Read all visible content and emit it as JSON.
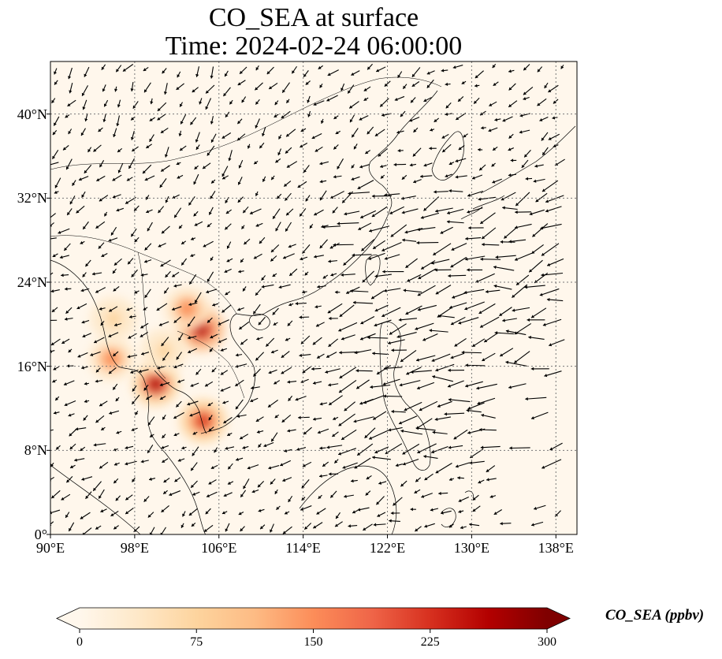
{
  "title": {
    "line1": "CO_SEA at surface",
    "line2": "Time: 2024-02-24 06:00:00"
  },
  "map": {
    "lon_range": [
      90,
      140
    ],
    "lat_range": [
      0,
      45
    ],
    "lon_ticks": [
      {
        "value": 90,
        "label": "90°E"
      },
      {
        "value": 98,
        "label": "98°E"
      },
      {
        "value": 106,
        "label": "106°E"
      },
      {
        "value": 114,
        "label": "114°E"
      },
      {
        "value": 122,
        "label": "122°E"
      },
      {
        "value": 130,
        "label": "130°E"
      },
      {
        "value": 138,
        "label": "138°E"
      }
    ],
    "lat_ticks": [
      {
        "value": 0,
        "label": "0°"
      },
      {
        "value": 8,
        "label": "8°N"
      },
      {
        "value": 16,
        "label": "16°N"
      },
      {
        "value": 24,
        "label": "24°N"
      },
      {
        "value": 32,
        "label": "32°N"
      },
      {
        "value": 40,
        "label": "40°N"
      }
    ],
    "gridlines": "dotted",
    "background_color": "#fff7ec",
    "coastline_color": "#000000",
    "hotspots": [
      {
        "lon": 104.3,
        "lat": 19.5,
        "value": 270
      },
      {
        "lon": 103.0,
        "lat": 21.5,
        "value": 160
      },
      {
        "lon": 100.0,
        "lat": 14.3,
        "value": 250
      },
      {
        "lon": 104.5,
        "lat": 10.8,
        "value": 220
      },
      {
        "lon": 95.8,
        "lat": 16.7,
        "value": 150
      },
      {
        "lon": 100.8,
        "lat": 17.5,
        "value": 80
      },
      {
        "lon": 96.0,
        "lat": 20.5,
        "value": 60
      }
    ]
  },
  "colorbar": {
    "min": 0,
    "max": 300,
    "extend": "both",
    "colormap": "OrRd",
    "colors": [
      "#fff7ec",
      "#fee8c8",
      "#fdd49e",
      "#fdbb84",
      "#fc8d59",
      "#ef6548",
      "#d7301f",
      "#b30000",
      "#7f0000"
    ],
    "ticks": [
      "0",
      "75",
      "150",
      "225",
      "300"
    ],
    "label": "CO_SEA (ppbv)"
  }
}
